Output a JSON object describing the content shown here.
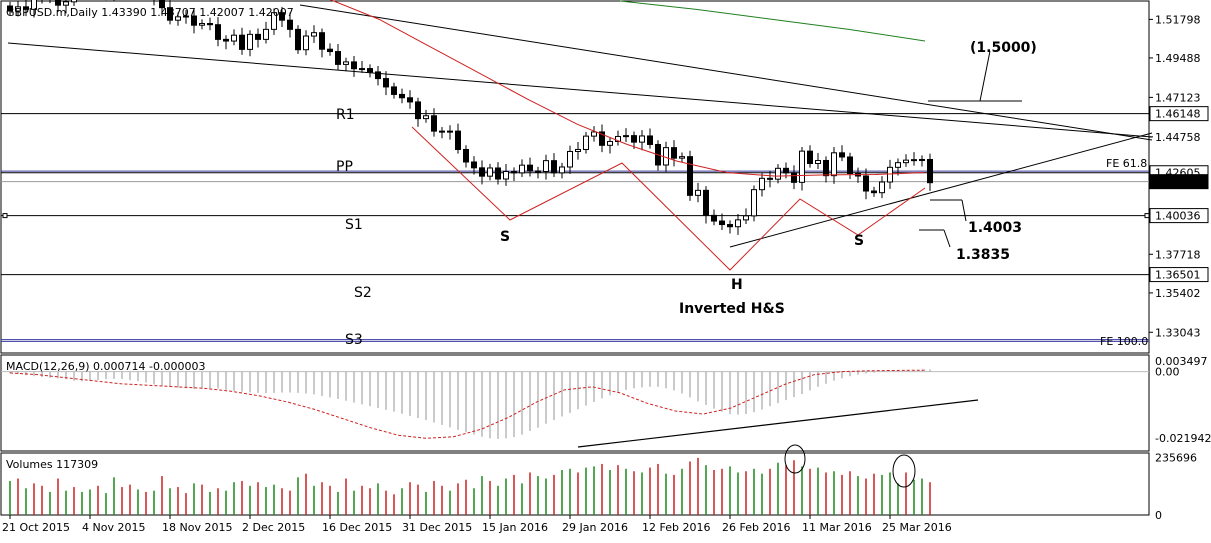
{
  "chart_data": {
    "type": "candlestick",
    "header": "GBPUSD.m,Daily  1.43390 1.43707 1.42007 1.42007",
    "price_axis": {
      "range": [
        1.318,
        1.529
      ],
      "ticks": [
        "1.51798",
        "1.49488",
        "1.47123",
        "1.44758",
        "1.37718",
        "1.35402",
        "1.33043"
      ],
      "highlighted": [
        {
          "value": 1.46148,
          "label": "1.46148",
          "style": "box"
        },
        {
          "value": 1.42605,
          "label": "1.42605",
          "style": "box"
        },
        {
          "value": 1.42071,
          "label": "1.42071",
          "style": "box-dark"
        },
        {
          "value": 1.40036,
          "label": "1.40036",
          "style": "box"
        },
        {
          "value": 1.36501,
          "label": "1.36501",
          "style": "box"
        }
      ]
    },
    "time_axis": {
      "count": 116,
      "labels": [
        {
          "i": 0,
          "text": "21 Oct 2015"
        },
        {
          "i": 10,
          "text": "4 Nov 2015"
        },
        {
          "i": 20,
          "text": "18 Nov 2015"
        },
        {
          "i": 30,
          "text": "2 Dec 2015"
        },
        {
          "i": 40,
          "text": "16 Dec 2015"
        },
        {
          "i": 50,
          "text": "31 Dec 2015"
        },
        {
          "i": 60,
          "text": "15 Jan 2016"
        },
        {
          "i": 70,
          "text": "29 Jan 2016"
        },
        {
          "i": 80,
          "text": "12 Feb 2016"
        },
        {
          "i": 90,
          "text": "26 Feb 2016"
        },
        {
          "i": 100,
          "text": "11 Mar 2016"
        },
        {
          "i": 110,
          "text": "25 Mar 2016"
        }
      ]
    },
    "pivot_levels": [
      {
        "name": "R1",
        "value": 1.46148
      },
      {
        "name": "PP",
        "value": 1.42605
      },
      {
        "name": "S1",
        "value": 1.40036
      },
      {
        "name": "S2",
        "value": 1.36501
      },
      {
        "name": "S3",
        "value": 1.325
      }
    ],
    "fibonacci": [
      {
        "label": "FE 61.8",
        "value": 1.427
      },
      {
        "label": "FE 100.0",
        "value": 1.326
      }
    ],
    "annotations": {
      "left_shoulder": "S",
      "head": "H",
      "right_shoulder": "S",
      "pattern": "Inverted H&S",
      "target_1": "1.4003",
      "target_2": "1.3835",
      "target_3": "(1.5000)"
    },
    "close_series": [
      1.523,
      1.5255,
      1.524,
      1.53,
      1.534,
      1.531,
      1.5265,
      1.5285,
      1.536,
      1.54,
      1.543,
      1.5475,
      1.532,
      1.536,
      1.536,
      1.536,
      1.537,
      1.538,
      1.5305,
      1.525,
      1.5175,
      1.5195,
      1.52,
      1.5145,
      1.5155,
      1.5148,
      1.506,
      1.505,
      1.5085,
      1.5,
      1.509,
      1.506,
      1.512,
      1.522,
      1.5175,
      1.512,
      1.4998,
      1.508,
      1.51,
      1.5001,
      1.4987,
      1.491,
      1.4925,
      1.4884,
      1.4885,
      1.4865,
      1.4825,
      1.4775,
      1.473,
      1.471,
      1.4685,
      1.4585,
      1.4602,
      1.451,
      1.4508,
      1.451,
      1.44,
      1.4325,
      1.429,
      1.424,
      1.4289,
      1.4223,
      1.4268,
      1.426,
      1.4306,
      1.4271,
      1.4268,
      1.4333,
      1.426,
      1.4295,
      1.4388,
      1.44,
      1.448,
      1.4505,
      1.4425,
      1.4448,
      1.4478,
      1.4483,
      1.4444,
      1.4481,
      1.443,
      1.4307,
      1.4411,
      1.4348,
      1.4357,
      1.4125,
      1.4155,
      1.4005,
      1.3971,
      1.395,
      1.3937,
      1.3978,
      1.4002,
      1.4159,
      1.4227,
      1.4222,
      1.4287,
      1.426,
      1.4203,
      1.439,
      1.4316,
      1.4334,
      1.4243,
      1.438,
      1.4355,
      1.4256,
      1.4241,
      1.4151,
      1.4141,
      1.4205,
      1.4293,
      1.4321,
      1.4336,
      1.4339,
      1.434,
      1.4201
    ],
    "ma_red": [
      1.536,
      1.53,
      1.518,
      1.502,
      1.486,
      1.47,
      1.455,
      1.443,
      1.433,
      1.4262,
      1.424,
      1.4248,
      1.425,
      1.4262
    ],
    "ma_green": [
      1.529,
      1.524,
      1.518,
      1.512,
      1.505
    ],
    "macd": {
      "label": "MACD(12,26,9) 0.000714 -0.000003",
      "range": [
        -0.0262,
        0.0055
      ],
      "ticks": [
        "0.003497",
        "0.00",
        "-0.021942"
      ],
      "histogram": [
        -0.0005,
        -0.0008,
        -0.0012,
        -0.0015,
        -0.0018,
        -0.002,
        -0.0022,
        -0.0025,
        -0.003,
        -0.0032,
        -0.003,
        -0.0028,
        -0.0025,
        -0.0024,
        -0.0024,
        -0.0028,
        -0.0031,
        -0.0036,
        -0.0042,
        -0.0047,
        -0.005,
        -0.0053,
        -0.0055,
        -0.0057,
        -0.0056,
        -0.0055,
        -0.0056,
        -0.006,
        -0.0063,
        -0.0066,
        -0.0068,
        -0.007,
        -0.0071,
        -0.007,
        -0.0069,
        -0.0069,
        -0.007,
        -0.0072,
        -0.0075,
        -0.008,
        -0.0085,
        -0.009,
        -0.0096,
        -0.0102,
        -0.0108,
        -0.0114,
        -0.012,
        -0.0126,
        -0.0132,
        -0.0139,
        -0.0146,
        -0.0153,
        -0.016,
        -0.0168,
        -0.0176,
        -0.0184,
        -0.0192,
        -0.02,
        -0.0208,
        -0.0215,
        -0.022,
        -0.0222,
        -0.022,
        -0.0216,
        -0.0208,
        -0.0196,
        -0.0185,
        -0.0172,
        -0.016,
        -0.0148,
        -0.0136,
        -0.0124,
        -0.0112,
        -0.01,
        -0.0088,
        -0.0078,
        -0.0068,
        -0.006,
        -0.0055,
        -0.0052,
        -0.005,
        -0.005,
        -0.0055,
        -0.0062,
        -0.0072,
        -0.0085,
        -0.0098,
        -0.011,
        -0.0122,
        -0.0132,
        -0.014,
        -0.0142,
        -0.014,
        -0.0134,
        -0.0125,
        -0.0114,
        -0.0104,
        -0.0094,
        -0.0084,
        -0.0074,
        -0.0062,
        -0.005,
        -0.004,
        -0.003,
        -0.0022,
        -0.0015,
        -0.001,
        -0.0006,
        -0.0003,
        -0.0001,
        0.0,
        0.0002,
        0.0003,
        0.0004,
        0.0005,
        0.0007
      ],
      "signal_dashed": [
        -0.0004,
        -0.001,
        -0.002,
        -0.003,
        -0.004,
        -0.0045,
        -0.005,
        -0.0055,
        -0.0065,
        -0.008,
        -0.01,
        -0.0125,
        -0.0155,
        -0.0185,
        -0.021,
        -0.022,
        -0.0215,
        -0.019,
        -0.015,
        -0.01,
        -0.006,
        -0.005,
        -0.007,
        -0.0105,
        -0.013,
        -0.014,
        -0.012,
        -0.008,
        -0.004,
        -0.001,
        0.0,
        0.0003,
        0.0004,
        0.0005
      ]
    },
    "volumes": {
      "label": "Volumes 117309",
      "range": [
        0,
        255000
      ],
      "ticks": [
        "235696",
        "0"
      ],
      "values": [
        140000,
        150000,
        110000,
        130000,
        120000,
        95000,
        150000,
        100000,
        115000,
        95000,
        105000,
        120000,
        90000,
        155000,
        115000,
        125000,
        105000,
        95000,
        100000,
        160000,
        110000,
        115000,
        90000,
        130000,
        125000,
        95000,
        110000,
        100000,
        135000,
        140000,
        120000,
        135000,
        115000,
        125000,
        110000,
        100000,
        155000,
        170000,
        120000,
        135000,
        120000,
        95000,
        150000,
        100000,
        120000,
        110000,
        130000,
        100000,
        85000,
        110000,
        135000,
        125000,
        95000,
        140000,
        120000,
        100000,
        130000,
        145000,
        110000,
        160000,
        140000,
        120000,
        150000,
        165000,
        130000,
        175000,
        160000,
        150000,
        165000,
        185000,
        190000,
        175000,
        195000,
        200000,
        210000,
        185000,
        205000,
        190000,
        180000,
        175000,
        195000,
        210000,
        170000,
        165000,
        190000,
        220000,
        235000,
        205000,
        185000,
        190000,
        200000,
        175000,
        180000,
        190000,
        170000,
        190000,
        215000,
        205000,
        225000,
        200000,
        190000,
        195000,
        175000,
        180000,
        165000,
        180000,
        160000,
        150000,
        170000,
        165000,
        175000,
        130000,
        175000,
        145000,
        150000,
        135000
      ],
      "colors": [
        "g",
        "r",
        "g",
        "r",
        "r",
        "g",
        "r",
        "g",
        "r",
        "g",
        "g",
        "r",
        "g",
        "g",
        "r",
        "r",
        "g",
        "r",
        "g",
        "r",
        "g",
        "r",
        "r",
        "g",
        "r",
        "g",
        "r",
        "g",
        "g",
        "r",
        "g",
        "r",
        "g",
        "g",
        "r",
        "r",
        "g",
        "r",
        "g",
        "r",
        "r",
        "g",
        "r",
        "g",
        "r",
        "r",
        "g",
        "r",
        "r",
        "g",
        "r",
        "r",
        "g",
        "r",
        "r",
        "g",
        "r",
        "r",
        "g",
        "g",
        "r",
        "g",
        "g",
        "r",
        "g",
        "r",
        "g",
        "g",
        "r",
        "g",
        "g",
        "r",
        "g",
        "g",
        "r",
        "g",
        "r",
        "g",
        "r",
        "g",
        "r",
        "r",
        "g",
        "r",
        "g",
        "r",
        "r",
        "g",
        "r",
        "r",
        "g",
        "g",
        "r",
        "g",
        "g",
        "r",
        "g",
        "r",
        "r",
        "g",
        "r",
        "g",
        "r",
        "g",
        "r",
        "r",
        "g",
        "r",
        "r",
        "g",
        "g",
        "g",
        "r",
        "g",
        "g",
        "r"
      ]
    }
  }
}
